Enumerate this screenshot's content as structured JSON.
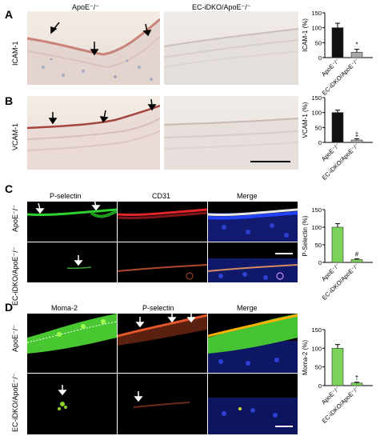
{
  "panels": {
    "A": {
      "letter": "A",
      "row_label": "ICAM-1",
      "col1": "ApoE⁻/⁻",
      "col2": "EC-iDKO/ApoE⁻/⁻"
    },
    "B": {
      "letter": "B",
      "row_label": "VCAM-1"
    },
    "C": {
      "letter": "C",
      "col1": "P-selectin",
      "col2": "CD31",
      "col3": "Merge",
      "row1": "ApoE⁻/⁻",
      "row2": "EC-iDKO/ApoE⁻/⁻"
    },
    "D": {
      "letter": "D",
      "col1": "Moma-2",
      "col2": "P-selectin",
      "col3": "Merge",
      "row1": "ApoE⁻/⁻",
      "row2": "EC-iDKO/ApoE⁻/⁻"
    }
  },
  "chart_data": [
    {
      "type": "bar",
      "panel": "A",
      "ylabel": "ICAM-1 (%)",
      "ylim": [
        0,
        150
      ],
      "yticks": [
        "0",
        "50",
        "100",
        "150"
      ],
      "categories": [
        "ApoE⁻/⁻",
        "EC-iDKO/ApoE⁻/⁻"
      ],
      "values": [
        100,
        18
      ],
      "errors": [
        15,
        10
      ],
      "colors": [
        "#111111",
        "#aaaaaa"
      ],
      "annotation": "*"
    },
    {
      "type": "bar",
      "panel": "B",
      "ylabel": "VCAM-1 (%)",
      "ylim": [
        0,
        150
      ],
      "yticks": [
        "0",
        "50",
        "100",
        "150"
      ],
      "categories": [
        "ApoE⁻/⁻",
        "EC-iDKO/ApoE⁻/⁻"
      ],
      "values": [
        100,
        8
      ],
      "errors": [
        8,
        4
      ],
      "colors": [
        "#111111",
        "#aaaaaa"
      ],
      "annotation": "‡"
    },
    {
      "type": "bar",
      "panel": "C",
      "ylabel": "P-Selectin (%)",
      "ylim": [
        0,
        150
      ],
      "yticks": [
        "0",
        "50",
        "100",
        "150"
      ],
      "categories": [
        "ApoE⁻/⁻",
        "EC-iDKO/ApoE⁻/⁻"
      ],
      "values": [
        100,
        8
      ],
      "errors": [
        10,
        2
      ],
      "colors": [
        "#7cd35a",
        "#7cd35a"
      ],
      "annotation": "#"
    },
    {
      "type": "bar",
      "panel": "D",
      "ylabel": "Moma-2 (%)",
      "ylim": [
        0,
        150
      ],
      "yticks": [
        "0",
        "50",
        "100",
        "150"
      ],
      "categories": [
        "ApoE⁻/⁻",
        "EC-iDKO/ApoE⁻/⁻"
      ],
      "values": [
        100,
        7
      ],
      "errors": [
        10,
        2
      ],
      "colors": [
        "#7cd35a",
        "#7cd35a"
      ],
      "annotation": "†"
    }
  ]
}
